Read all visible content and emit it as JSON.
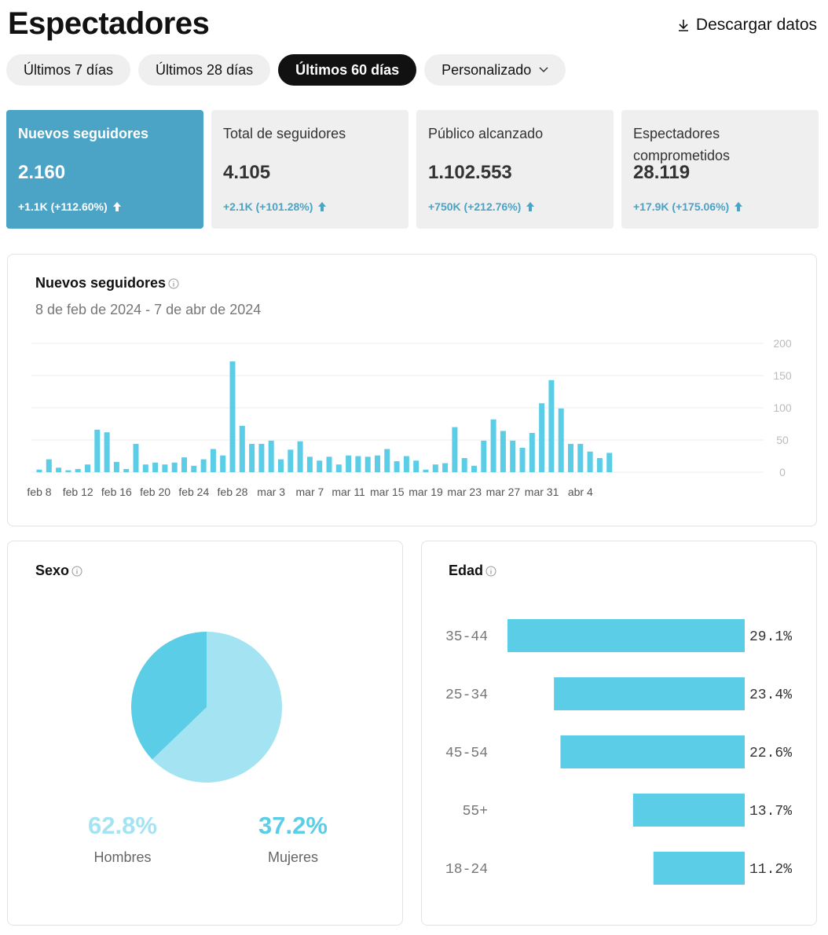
{
  "page": {
    "title": "Espectadores",
    "download_label": "Descargar datos"
  },
  "filters": [
    {
      "label": "Últimos 7 días",
      "active": false
    },
    {
      "label": "Últimos 28 días",
      "active": false
    },
    {
      "label": "Últimos 60 días",
      "active": true
    },
    {
      "label": "Personalizado",
      "active": false
    }
  ],
  "kpis": [
    {
      "label": "Nuevos seguidores",
      "value": "2.160",
      "change": "+1.1K (+112.60%)",
      "active": true
    },
    {
      "label": "Total de seguidores",
      "value": "4.105",
      "change": "+2.1K (+101.28%)",
      "active": false
    },
    {
      "label": "Público alcanzado",
      "value": "1.102.553",
      "change": "+750K (+212.76%)",
      "active": false
    },
    {
      "label": "Espectadores comprometidos",
      "value": "28.119",
      "change": "+17.9K (+175.06%)",
      "active": false
    }
  ],
  "colors": {
    "accent": "#4ba3c5",
    "bar": "#5ccde6",
    "pie_light": "#a4e4f2",
    "pie_dark": "#5ccde6",
    "text_muted": "#777777"
  },
  "chart_data": [
    {
      "type": "bar",
      "title": "Nuevos seguidores",
      "subtitle": "8 de feb de 2024 - 7 de abr de 2024",
      "x_tick_labels": [
        "feb 8",
        "feb 12",
        "feb 16",
        "feb 20",
        "feb 24",
        "feb 28",
        "mar 3",
        "mar 7",
        "mar 11",
        "mar 15",
        "mar 19",
        "mar 23",
        "mar 27",
        "mar 31",
        "abr 4"
      ],
      "y_ticks": [
        0,
        50,
        100,
        150,
        200
      ],
      "ylim": [
        0,
        200
      ],
      "grid": true,
      "values": [
        4,
        20,
        7,
        3,
        5,
        12,
        66,
        62,
        16,
        5,
        44,
        12,
        15,
        12,
        15,
        23,
        10,
        20,
        36,
        26,
        172,
        72,
        44,
        44,
        49,
        20,
        35,
        48,
        24,
        18,
        24,
        12,
        26,
        25,
        24,
        26,
        36,
        17,
        25,
        18,
        4,
        12,
        14,
        70,
        22,
        10,
        49,
        82,
        64,
        49,
        38,
        61,
        107,
        143,
        99,
        44,
        44,
        32,
        22,
        30
      ]
    },
    {
      "type": "pie",
      "title": "Sexo",
      "slices": [
        {
          "label": "Hombres",
          "value": 62.8,
          "display": "62.8%"
        },
        {
          "label": "Mujeres",
          "value": 37.2,
          "display": "37.2%"
        }
      ]
    },
    {
      "type": "bar",
      "orientation": "horizontal",
      "title": "Edad",
      "categories": [
        "35-44",
        "25-34",
        "45-54",
        "55+",
        "18-24"
      ],
      "values": [
        29.1,
        23.4,
        22.6,
        13.7,
        11.2
      ],
      "value_labels": [
        "29.1%",
        "23.4%",
        "22.6%",
        "13.7%",
        "11.2%"
      ]
    }
  ]
}
